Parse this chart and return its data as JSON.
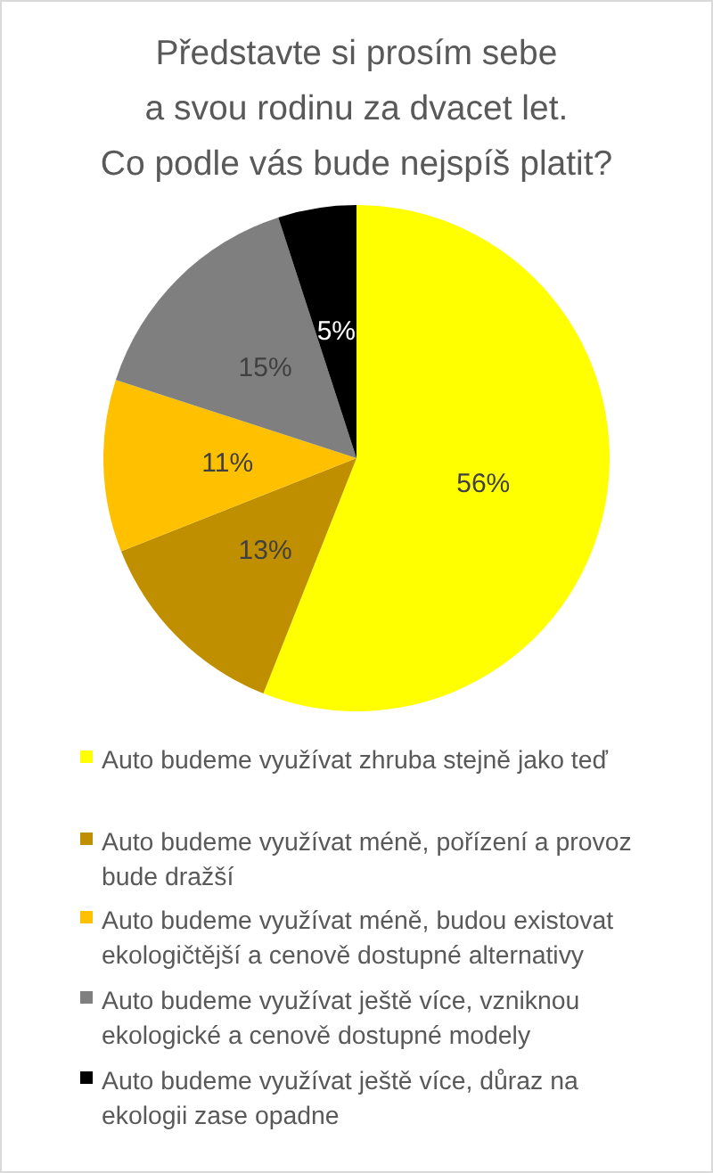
{
  "chart_data": {
    "type": "pie",
    "title": "Představte si prosím sebe\na svou rodinu za dvacet let.\nCo podle vás bude nejspíš platit?",
    "categories": [
      "Auto budeme využívat zhruba stejně jako teď",
      "Auto budeme využívat méně, pořízení a provoz bude dražší",
      "Auto budeme využívat méně, budou existovat ekologičtější a cenově dostupné alternativy",
      "Auto budeme využívat ještě více, vzniknou ekologické a cenově dostupné modely",
      "Auto budeme využívat ještě více, důraz na ekologii zase opadne"
    ],
    "values": [
      56,
      13,
      11,
      15,
      5
    ],
    "colors": [
      "#ffff00",
      "#bf8f00",
      "#ffc000",
      "#7f7f7f",
      "#000000"
    ],
    "value_labels": [
      "56%",
      "13%",
      "11%",
      "15%",
      "5%"
    ],
    "legend": "bottom"
  }
}
